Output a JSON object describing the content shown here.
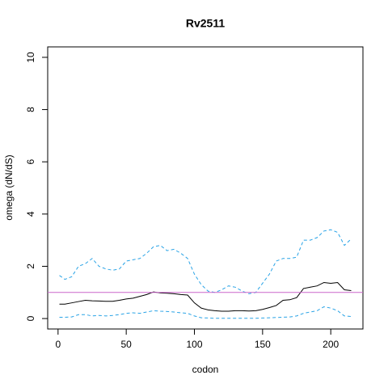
{
  "chart_data": {
    "type": "line",
    "title": "Rv2511",
    "xlabel": "codon",
    "ylabel": "omega (dN/dS)",
    "x": [
      1,
      5,
      10,
      15,
      20,
      25,
      30,
      35,
      40,
      45,
      50,
      55,
      60,
      65,
      70,
      75,
      80,
      85,
      90,
      95,
      100,
      105,
      110,
      115,
      120,
      125,
      130,
      135,
      140,
      145,
      150,
      155,
      160,
      165,
      170,
      175,
      180,
      185,
      190,
      195,
      200,
      205,
      210,
      215
    ],
    "series": [
      {
        "color": "#000000",
        "dashed": false,
        "values": [
          0.55,
          0.55,
          0.6,
          0.65,
          0.7,
          0.68,
          0.67,
          0.66,
          0.66,
          0.7,
          0.75,
          0.78,
          0.85,
          0.92,
          1.02,
          0.98,
          0.97,
          0.95,
          0.92,
          0.9,
          0.6,
          0.4,
          0.33,
          0.3,
          0.28,
          0.28,
          0.3,
          0.3,
          0.29,
          0.3,
          0.35,
          0.42,
          0.5,
          0.7,
          0.72,
          0.8,
          1.15,
          1.2,
          1.25,
          1.38,
          1.35,
          1.38,
          1.1,
          1.07
        ]
      },
      {
        "color": "#29a3e6",
        "dashed": true,
        "values": [
          1.65,
          1.5,
          1.6,
          2.0,
          2.1,
          2.3,
          2.0,
          1.9,
          1.85,
          1.9,
          2.2,
          2.25,
          2.3,
          2.5,
          2.75,
          2.8,
          2.6,
          2.65,
          2.5,
          2.3,
          1.7,
          1.3,
          1.05,
          1.0,
          1.1,
          1.25,
          1.2,
          1.05,
          0.95,
          1.0,
          1.35,
          1.7,
          2.2,
          2.3,
          2.3,
          2.35,
          3.0,
          3.0,
          3.1,
          3.35,
          3.4,
          3.3,
          2.8,
          3.05
        ]
      },
      {
        "color": "#29a3e6",
        "dashed": true,
        "values": [
          0.05,
          0.05,
          0.06,
          0.15,
          0.15,
          0.1,
          0.12,
          0.1,
          0.12,
          0.15,
          0.2,
          0.22,
          0.2,
          0.25,
          0.3,
          0.28,
          0.27,
          0.25,
          0.22,
          0.2,
          0.1,
          0.03,
          0.02,
          0.01,
          0.01,
          0.01,
          0.01,
          0.01,
          0.01,
          0.01,
          0.02,
          0.03,
          0.04,
          0.05,
          0.06,
          0.1,
          0.2,
          0.25,
          0.3,
          0.45,
          0.4,
          0.3,
          0.1,
          0.08
        ]
      }
    ],
    "reference_line": {
      "value": 1,
      "color": "#cc66cc"
    },
    "xlim": [
      -7.6,
      223.6
    ],
    "xticks": [
      0,
      50,
      100,
      150,
      200
    ],
    "ylim": [
      -0.4,
      10.4
    ],
    "yticks": [
      0,
      2,
      4,
      6,
      8,
      10
    ]
  }
}
